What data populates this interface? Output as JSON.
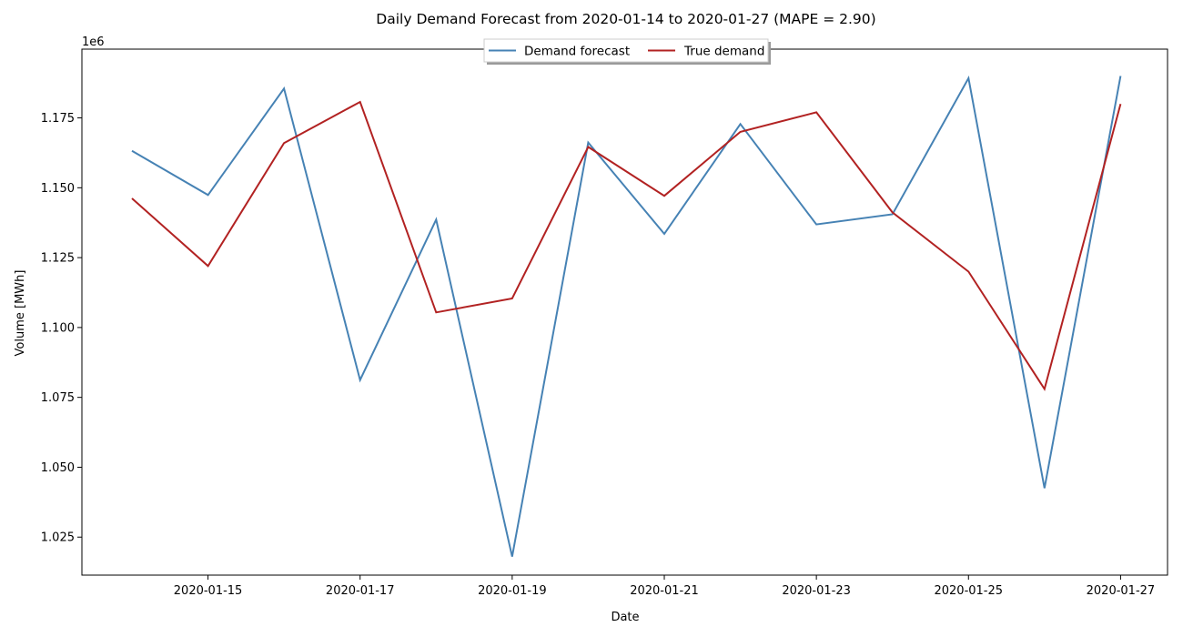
{
  "chart_data": {
    "type": "line",
    "title": "Daily Demand Forecast from 2020-01-14 to 2020-01-27 (MAPE = 2.90)",
    "xlabel": "Date",
    "ylabel": "Volume [MWh]",
    "y_offset_label": "1e6",
    "x": [
      "2020-01-14",
      "2020-01-15",
      "2020-01-16",
      "2020-01-17",
      "2020-01-18",
      "2020-01-19",
      "2020-01-20",
      "2020-01-21",
      "2020-01-22",
      "2020-01-23",
      "2020-01-24",
      "2020-01-25",
      "2020-01-26",
      "2020-01-27"
    ],
    "x_ticks": [
      "2020-01-15",
      "2020-01-17",
      "2020-01-19",
      "2020-01-21",
      "2020-01-23",
      "2020-01-25",
      "2020-01-27"
    ],
    "y_ticks": [
      1.025,
      1.05,
      1.075,
      1.1,
      1.125,
      1.15,
      1.175
    ],
    "y_tick_labels": [
      "1.025",
      "1.050",
      "1.075",
      "1.100",
      "1.125",
      "1.150",
      "1.175"
    ],
    "ylim": [
      1.0114,
      1.1996
    ],
    "grid": false,
    "legend_position": "top-center",
    "series": [
      {
        "name": "Demand forecast",
        "color": "#4682b4",
        "values": [
          1.1632,
          1.1474,
          1.1855,
          1.0812,
          1.1386,
          1.018,
          1.1662,
          1.1335,
          1.1728,
          1.1369,
          1.1405,
          1.1892,
          1.0425,
          1.19
        ]
      },
      {
        "name": "True demand",
        "color": "#b22222",
        "values": [
          1.1462,
          1.122,
          1.166,
          1.1807,
          1.1054,
          1.1104,
          1.1646,
          1.1471,
          1.17,
          1.177,
          1.1412,
          1.12,
          1.078,
          1.18
        ]
      }
    ]
  }
}
